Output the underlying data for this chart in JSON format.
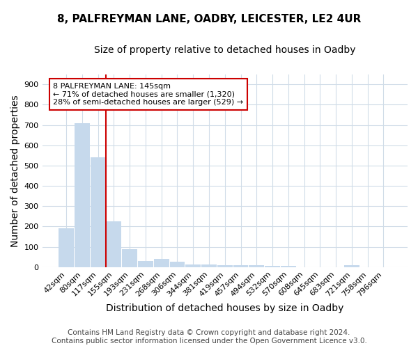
{
  "title": "8, PALFREYMAN LANE, OADBY, LEICESTER, LE2 4UR",
  "subtitle": "Size of property relative to detached houses in Oadby",
  "xlabel": "Distribution of detached houses by size in Oadby",
  "ylabel": "Number of detached properties",
  "categories": [
    "42sqm",
    "80sqm",
    "117sqm",
    "155sqm",
    "193sqm",
    "231sqm",
    "268sqm",
    "306sqm",
    "344sqm",
    "381sqm",
    "419sqm",
    "457sqm",
    "494sqm",
    "532sqm",
    "570sqm",
    "608sqm",
    "645sqm",
    "683sqm",
    "721sqm",
    "758sqm",
    "796sqm"
  ],
  "values": [
    190,
    710,
    540,
    225,
    90,
    30,
    40,
    27,
    13,
    13,
    10,
    10,
    10,
    7,
    5,
    0,
    0,
    0,
    9,
    0,
    0
  ],
  "bar_color": "#c6d9ec",
  "bar_edgecolor": "#c6d9ec",
  "vline_color": "#cc0000",
  "annotation_text": "8 PALFREYMAN LANE: 145sqm\n← 71% of detached houses are smaller (1,320)\n28% of semi-detached houses are larger (529) →",
  "annotation_box_color": "#ffffff",
  "annotation_box_edgecolor": "#cc0000",
  "ylim": [
    0,
    950
  ],
  "yticks": [
    0,
    100,
    200,
    300,
    400,
    500,
    600,
    700,
    800,
    900
  ],
  "footer": "Contains HM Land Registry data © Crown copyright and database right 2024.\nContains public sector information licensed under the Open Government Licence v3.0.",
  "bg_color": "#ffffff",
  "plot_bg_color": "#ffffff",
  "grid_color": "#d0dce8",
  "title_fontsize": 11,
  "subtitle_fontsize": 10,
  "axis_label_fontsize": 10,
  "tick_fontsize": 8,
  "footer_fontsize": 7.5
}
